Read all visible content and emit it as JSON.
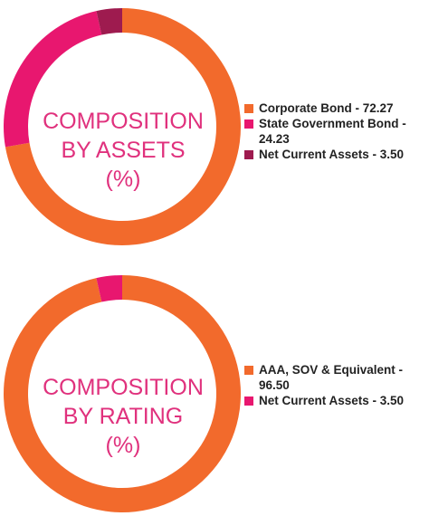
{
  "chart_data": [
    {
      "type": "pie",
      "donut": true,
      "title_lines": [
        "COMPOSITION",
        "BY ASSETS",
        "(%)"
      ],
      "slices": [
        {
          "label": "Corporate Bond - 72.27",
          "value": 72.27,
          "color": "#f26a2c"
        },
        {
          "label": "State Government Bond - 24.23",
          "value": 24.23,
          "color": "#e8176f"
        },
        {
          "label": "Net Current Assets - 3.50",
          "value": 3.5,
          "color": "#9e1b4f"
        }
      ],
      "legend_position": "right"
    },
    {
      "type": "pie",
      "donut": true,
      "title_lines": [
        "COMPOSITION",
        "BY RATING",
        "(%)"
      ],
      "slices": [
        {
          "label": "AAA, SOV & Equivalent - 96.50",
          "value": 96.5,
          "color": "#f26a2c"
        },
        {
          "label": "Net Current Assets - 3.50",
          "value": 3.5,
          "color": "#e8176f"
        }
      ],
      "legend_position": "right"
    }
  ]
}
